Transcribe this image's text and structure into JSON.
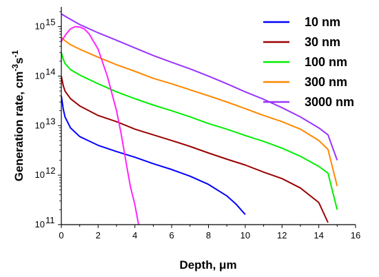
{
  "chart_data": {
    "type": "line",
    "xlabel": "Depth, μm",
    "ylabel": {
      "main": "Generation rate, cm",
      "sup1": "-3",
      "mid": "s",
      "sup2": "-1"
    },
    "xlim": [
      0,
      16
    ],
    "ylim": [
      100000000000.0,
      2500000000000000.0
    ],
    "yscale": "log",
    "x_ticks": [
      "0",
      "2",
      "4",
      "6",
      "8",
      "10",
      "12",
      "14",
      "16"
    ],
    "y_ticks": [
      {
        "base": "10",
        "exp": "11"
      },
      {
        "base": "10",
        "exp": "12"
      },
      {
        "base": "10",
        "exp": "13"
      },
      {
        "base": "10",
        "exp": "14"
      },
      {
        "base": "10",
        "exp": "15"
      }
    ],
    "legend_position": "top-right",
    "series": [
      {
        "name": "10 nm",
        "color": "#0000ff",
        "x": [
          0,
          0.1,
          0.2,
          0.5,
          1,
          2,
          3,
          4,
          5,
          6,
          7,
          8,
          9,
          9.5,
          10
        ],
        "y": [
          40000000000000.0,
          22000000000000.0,
          15000000000000.0,
          9000000000000.0,
          6000000000000.0,
          4000000000000.0,
          3000000000000.0,
          2300000000000.0,
          1700000000000.0,
          1300000000000.0,
          950000000000.0,
          650000000000.0,
          380000000000.0,
          260000000000.0,
          160000000000.0
        ]
      },
      {
        "name": "30 nm",
        "color": "#990000",
        "x": [
          0,
          0.1,
          0.2,
          0.5,
          1,
          2,
          3,
          4,
          5,
          6,
          7,
          8,
          9,
          10,
          11,
          12,
          13,
          14,
          14.5
        ],
        "y": [
          100000000000000.0,
          65000000000000.0,
          50000000000000.0,
          35000000000000.0,
          25000000000000.0,
          16000000000000.0,
          12000000000000.0,
          8500000000000.0,
          6500000000000.0,
          5000000000000.0,
          3800000000000.0,
          2800000000000.0,
          2100000000000.0,
          1600000000000.0,
          1150000000000.0,
          850000000000.0,
          550000000000.0,
          280000000000.0,
          110000000000.0
        ]
      },
      {
        "name": "100 nm",
        "color": "#00ee00",
        "x": [
          0,
          0.1,
          0.2,
          0.5,
          1,
          2,
          3,
          4,
          5,
          6,
          7,
          8,
          9,
          10,
          11,
          12,
          13,
          14,
          14.5,
          15
        ],
        "y": [
          300000000000000.0,
          220000000000000.0,
          180000000000000.0,
          135000000000000.0,
          105000000000000.0,
          70000000000000.0,
          48000000000000.0,
          35000000000000.0,
          26000000000000.0,
          20000000000000.0,
          15000000000000.0,
          11000000000000.0,
          8500000000000.0,
          6300000000000.0,
          4800000000000.0,
          3500000000000.0,
          2400000000000.0,
          1500000000000.0,
          1100000000000.0,
          200000000000.0
        ]
      },
      {
        "name": "300 nm",
        "color": "#ff8800",
        "x": [
          0,
          0.1,
          0.2,
          0.5,
          1,
          2,
          3,
          4,
          5,
          6,
          7,
          8,
          9,
          10,
          11,
          12,
          13,
          14,
          14.5,
          15
        ],
        "y": [
          600000000000000.0,
          560000000000000.0,
          520000000000000.0,
          430000000000000.0,
          350000000000000.0,
          240000000000000.0,
          170000000000000.0,
          125000000000000.0,
          90000000000000.0,
          70000000000000.0,
          53000000000000.0,
          40000000000000.0,
          30000000000000.0,
          22000000000000.0,
          16000000000000.0,
          12000000000000.0,
          8500000000000.0,
          5000000000000.0,
          3300000000000.0,
          600000000000.0
        ]
      },
      {
        "name": "3000 nm",
        "color": "#9933ff",
        "x": [
          0,
          0.5,
          1,
          2,
          3,
          4,
          5,
          6,
          7,
          8,
          9,
          10,
          11,
          12,
          13,
          14,
          14.5,
          15
        ],
        "y": [
          1800000000000000.0,
          1400000000000000.0,
          1100000000000000.0,
          750000000000000.0,
          530000000000000.0,
          370000000000000.0,
          260000000000000.0,
          190000000000000.0,
          140000000000000.0,
          100000000000000.0,
          70000000000000.0,
          48000000000000.0,
          34000000000000.0,
          23000000000000.0,
          15000000000000.0,
          9000000000000.0,
          6500000000000.0,
          2000000000000.0
        ]
      },
      {
        "name": "",
        "color": "#ff22ff",
        "x": [
          0,
          0.25,
          0.5,
          0.75,
          1,
          1.25,
          1.5,
          2,
          2.5,
          3,
          3.25,
          3.5,
          3.75,
          4,
          4.2
        ],
        "y": [
          500000000000000.0,
          700000000000000.0,
          900000000000000.0,
          1000000000000000.0,
          980000000000000.0,
          900000000000000.0,
          720000000000000.0,
          350000000000000.0,
          100000000000000.0,
          20000000000000.0,
          7000000000000.0,
          2000000000000.0,
          600000000000.0,
          250000000000.0,
          100000000000.0
        ]
      }
    ]
  }
}
